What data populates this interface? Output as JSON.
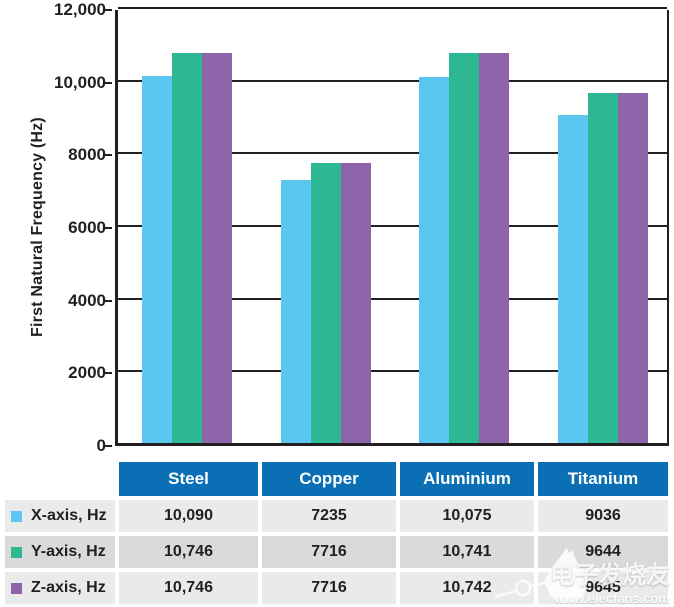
{
  "chart_data": {
    "type": "bar",
    "title": "",
    "xlabel": "",
    "ylabel": "First Natural Frequency (Hz)",
    "ylim": [
      0,
      12000
    ],
    "ytick_step": 2000,
    "ytick_labels": [
      "0",
      "2000",
      "4000",
      "6000",
      "8000",
      "10,000",
      "12,000"
    ],
    "grid": true,
    "legend_position": "table-left-column",
    "categories": [
      "Steel",
      "Copper",
      "Aluminium",
      "Titanium"
    ],
    "series": [
      {
        "name": "X-axis, Hz",
        "color": "#5BC6EF",
        "values": [
          10090,
          7235,
          10075,
          9036
        ],
        "display": [
          "10,090",
          "7235",
          "10,075",
          "9036"
        ]
      },
      {
        "name": "Y-axis, Hz",
        "color": "#2DB792",
        "values": [
          10746,
          7716,
          10741,
          9644
        ],
        "display": [
          "10,746",
          "7716",
          "10,741",
          "9644"
        ]
      },
      {
        "name": "Z-axis, Hz",
        "color": "#8D64A9",
        "values": [
          10746,
          7716,
          10742,
          9645
        ],
        "display": [
          "10,746",
          "7716",
          "10,742",
          "9645"
        ]
      }
    ]
  },
  "table": {
    "column_headers": [
      "Steel",
      "Copper",
      "Aluminium",
      "Titanium"
    ]
  },
  "watermark": {
    "brand": "电子发烧友",
    "url": "www.elecfans.com",
    "logo": "flame-circuit-icon"
  },
  "colors": {
    "bar_x": "#5BC6EF",
    "bar_y": "#2DB792",
    "bar_z": "#8D64A9",
    "header_bg": "#0A6FB5",
    "row_bg_light": "#EAEAEA",
    "row_bg_dark": "#DADADA",
    "axis_and_text": "#231F20",
    "header_text": "#FFFFFF"
  }
}
